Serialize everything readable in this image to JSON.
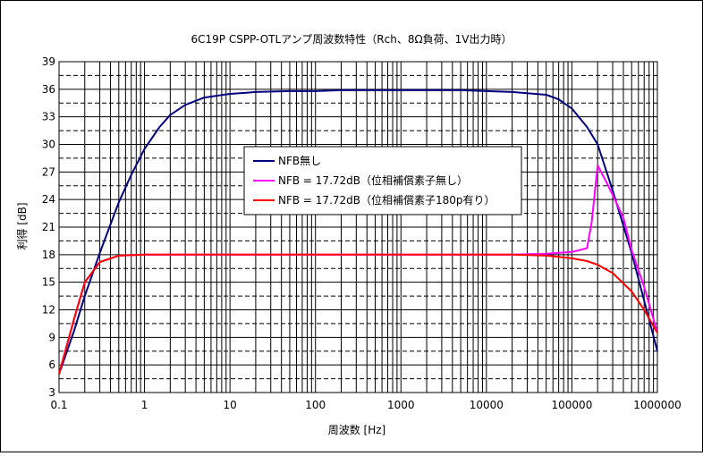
{
  "chart_data": {
    "type": "line",
    "title": "6C19P CSPP-OTLアンプ周波数特性（Rch、8Ω負荷、1V出力時）",
    "xlabel": "周波数 [Hz]",
    "ylabel": "利得 [dB]",
    "xscale": "log",
    "xlim": [
      0.1,
      1000000
    ],
    "ylim": [
      3,
      39
    ],
    "x_ticks": [
      "0.1",
      "1",
      "10",
      "100",
      "1000",
      "10000",
      "100000",
      "1000000"
    ],
    "y_ticks": [
      "3",
      "6",
      "9",
      "12",
      "15",
      "18",
      "21",
      "24",
      "27",
      "30",
      "33",
      "36",
      "39"
    ],
    "grid": true,
    "legend_position": "center",
    "series": [
      {
        "name": "NFB無し",
        "color": "#000080",
        "x": [
          0.1,
          0.15,
          0.2,
          0.3,
          0.5,
          0.7,
          1,
          1.5,
          2,
          3,
          5,
          10,
          15,
          20,
          50,
          100,
          200,
          500,
          1000,
          2000,
          5000,
          10000,
          20000,
          50000,
          70000,
          100000,
          150000,
          200000,
          300000,
          500000,
          700000,
          1000000
        ],
        "y": [
          5,
          9.7,
          13.5,
          18.2,
          23.7,
          26.7,
          29.5,
          31.9,
          33.2,
          34.3,
          35.1,
          35.5,
          35.6,
          35.7,
          35.8,
          35.8,
          35.9,
          35.9,
          35.9,
          35.9,
          35.9,
          35.8,
          35.7,
          35.4,
          34.9,
          33.9,
          31.9,
          30.0,
          25.0,
          18.2,
          13.0,
          7.5
        ]
      },
      {
        "name": "NFB = 17.72dB（位相補償素子無し）",
        "color": "#FF00FF",
        "x": [
          0.1,
          0.15,
          0.2,
          0.3,
          0.5,
          1,
          2,
          10,
          100,
          1000,
          10000,
          20000,
          50000,
          100000,
          150000,
          170000,
          200000,
          250000,
          300000,
          400000,
          500000,
          700000,
          1000000
        ],
        "y": [
          5,
          11,
          15,
          17.2,
          17.9,
          18.0,
          18.0,
          18.0,
          18.0,
          18.0,
          18.0,
          18.0,
          18.1,
          18.3,
          18.7,
          21.5,
          27.7,
          26.0,
          24.5,
          22.0,
          18.5,
          14.5,
          9.5
        ]
      },
      {
        "name": "NFB = 17.72dB（位相補償素子180p有り）",
        "color": "#FF0000",
        "x": [
          0.1,
          0.15,
          0.2,
          0.3,
          0.5,
          1,
          2,
          10,
          100,
          1000,
          10000,
          20000,
          50000,
          100000,
          150000,
          200000,
          300000,
          500000,
          700000,
          1000000
        ],
        "y": [
          5,
          11,
          15,
          17.2,
          17.9,
          18.0,
          18.0,
          18.0,
          18.0,
          18.0,
          18.0,
          18.0,
          17.9,
          17.6,
          17.3,
          16.9,
          16.0,
          14.0,
          12.0,
          9.5
        ]
      }
    ]
  }
}
